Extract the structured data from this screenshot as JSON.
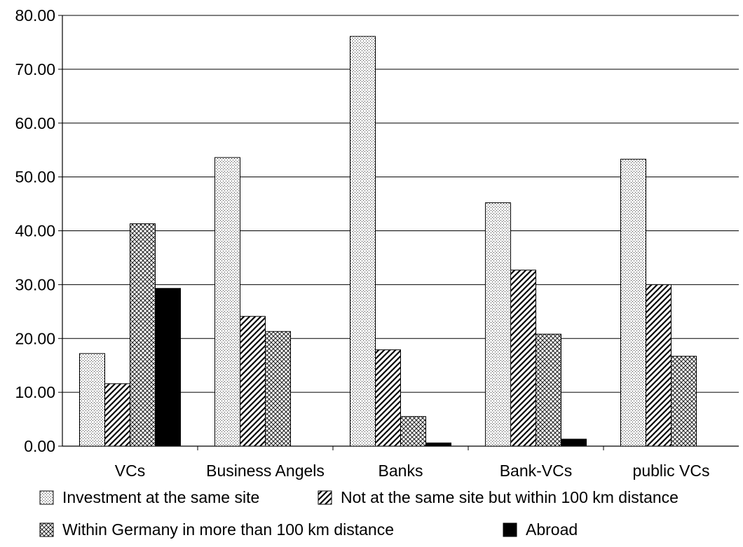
{
  "chart_data": {
    "type": "bar",
    "title": "",
    "xlabel": "",
    "ylabel": "",
    "ylim": [
      0,
      80
    ],
    "yticks": [
      "0.00",
      "10.00",
      "20.00",
      "30.00",
      "40.00",
      "50.00",
      "60.00",
      "70.00",
      "80.00"
    ],
    "grid": true,
    "legend_position": "bottom",
    "categories": [
      "VCs",
      "Business Angels",
      "Banks",
      "Bank-VCs",
      "public VCs"
    ],
    "series": [
      {
        "name": "Investment at the same site",
        "pattern": "dots",
        "values": [
          17.2,
          53.6,
          76.1,
          45.2,
          53.3
        ]
      },
      {
        "name": "Not at the same site but within 100 km distance",
        "pattern": "diagonal-hatch",
        "values": [
          11.6,
          24.1,
          17.9,
          32.7,
          30.0
        ]
      },
      {
        "name": "Within Germany in more than  100 km distance",
        "pattern": "cross-hatch",
        "values": [
          41.3,
          21.3,
          5.5,
          20.8,
          16.7
        ]
      },
      {
        "name": "Abroad",
        "pattern": "solid",
        "color": "#000000",
        "values": [
          29.3,
          0,
          0.6,
          1.3,
          0
        ]
      }
    ]
  }
}
